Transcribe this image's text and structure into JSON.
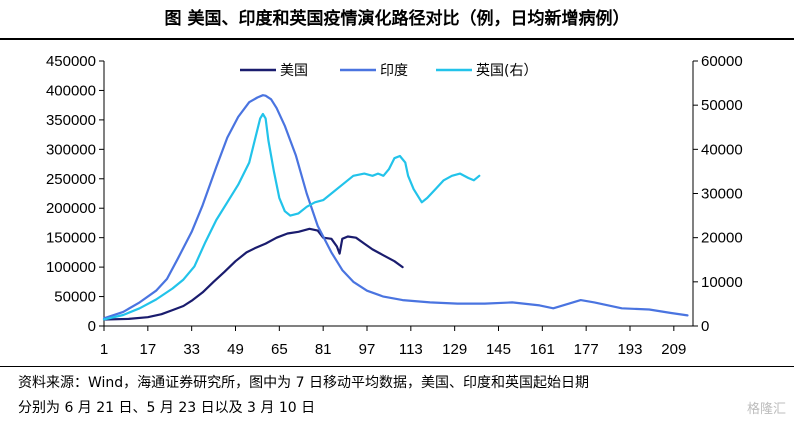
{
  "title": "图  美国、印度和英国疫情演化路径对比（例，日均新增病例）",
  "source_line1": "资料来源：Wind，海通证券研究所，图中为 7 日移动平均数据，美国、印度和英国起始日期",
  "source_line2": "分别为 6 月 21 日、5 月 23 日以及 3 月 10 日",
  "watermark": "格隆汇",
  "colors": {
    "us": "#1a1c6e",
    "india": "#4a74e0",
    "uk": "#22c3ea"
  },
  "chart_data": {
    "type": "line",
    "title": "美国、印度和英国疫情演化路径对比（例，日均新增病例）",
    "xlabel": "",
    "x_ticks": [
      "1",
      "17",
      "33",
      "49",
      "65",
      "81",
      "97",
      "113",
      "129",
      "145",
      "161",
      "177",
      "193",
      "209"
    ],
    "xlim": [
      1,
      216
    ],
    "ylim_left": [
      0,
      450000
    ],
    "y_ticks_left": [
      "0",
      "50000",
      "100000",
      "150000",
      "200000",
      "250000",
      "300000",
      "350000",
      "400000",
      "450000"
    ],
    "ylim_right": [
      0,
      60000
    ],
    "y_ticks_right": [
      "0",
      "10000",
      "20000",
      "30000",
      "40000",
      "50000",
      "60000"
    ],
    "legend": [
      "美国",
      "印度",
      "英国(右）"
    ],
    "legend_position": "top",
    "series": [
      {
        "name": "美国",
        "axis": "left",
        "color_key": "us",
        "x": [
          1,
          10,
          17,
          22,
          26,
          30,
          33,
          37,
          41,
          45,
          49,
          53,
          56,
          60,
          64,
          68,
          72,
          76,
          79,
          81,
          84,
          86,
          87,
          88,
          90,
          93,
          96,
          99,
          103,
          107,
          110
        ],
        "y": [
          11000,
          12000,
          15000,
          20000,
          27000,
          34000,
          43000,
          57000,
          75000,
          92000,
          110000,
          125000,
          132000,
          140000,
          150000,
          157000,
          160000,
          165000,
          162000,
          150000,
          148000,
          135000,
          123000,
          148000,
          152000,
          150000,
          140000,
          130000,
          120000,
          110000,
          100000
        ]
      },
      {
        "name": "印度",
        "axis": "left",
        "color_key": "india",
        "x": [
          1,
          8,
          14,
          20,
          24,
          28,
          33,
          37,
          42,
          46,
          50,
          54,
          57,
          59,
          60,
          62,
          64,
          67,
          71,
          75,
          79,
          84,
          88,
          92,
          97,
          103,
          110,
          120,
          130,
          140,
          150,
          160,
          165,
          170,
          175,
          180,
          190,
          200,
          208,
          214
        ],
        "y": [
          13000,
          24000,
          40000,
          60000,
          80000,
          115000,
          160000,
          205000,
          270000,
          320000,
          355000,
          380000,
          388000,
          392000,
          391000,
          385000,
          370000,
          340000,
          290000,
          225000,
          170000,
          125000,
          95000,
          75000,
          60000,
          50000,
          44000,
          40000,
          38000,
          38000,
          40000,
          35000,
          30000,
          37000,
          44000,
          40000,
          30000,
          28000,
          22000,
          18000
        ]
      },
      {
        "name": "英国(右）",
        "axis": "right",
        "color_key": "uk",
        "x": [
          1,
          8,
          14,
          20,
          26,
          30,
          34,
          38,
          42,
          46,
          50,
          54,
          56,
          58,
          59,
          60,
          61,
          63,
          65,
          67,
          69,
          72,
          75,
          78,
          81,
          84,
          88,
          92,
          96,
          99,
          101,
          103,
          105,
          107,
          109,
          111,
          112,
          114,
          117,
          119,
          122,
          125,
          128,
          131,
          134,
          136,
          138
        ],
        "y": [
          1500,
          2500,
          4000,
          6000,
          8500,
          10500,
          13500,
          19000,
          24000,
          28000,
          32000,
          37000,
          42000,
          47000,
          48000,
          47000,
          42000,
          35000,
          29000,
          26000,
          25000,
          25500,
          27000,
          28000,
          28500,
          30000,
          32000,
          34000,
          34500,
          34000,
          34500,
          34000,
          35500,
          38000,
          38500,
          37000,
          34000,
          31000,
          28000,
          29000,
          31000,
          33000,
          34000,
          34500,
          33500,
          33000,
          34000
        ]
      }
    ]
  }
}
